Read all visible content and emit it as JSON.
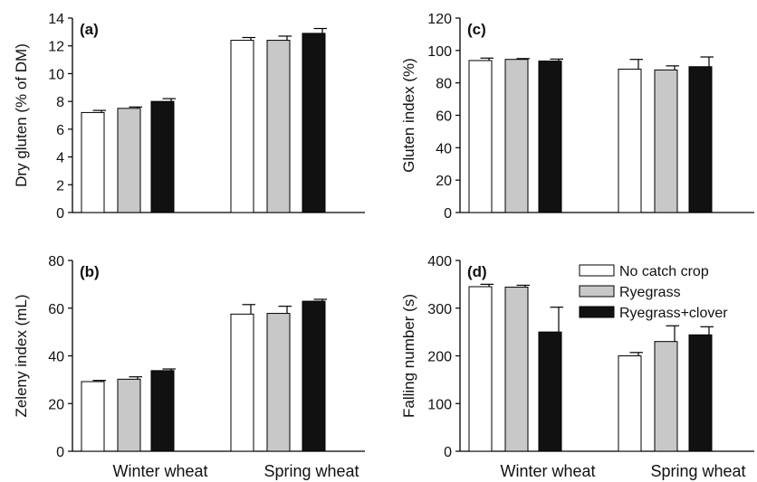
{
  "chart_data": [
    {
      "type": "bar",
      "panel_label": "(a)",
      "ylabel": "Dry gluten (% of DM)",
      "ylim": [
        0,
        14
      ],
      "yticks": [
        "0",
        "2",
        "4",
        "6",
        "8",
        "10",
        "12",
        "14"
      ],
      "categories": [
        "Winter wheat",
        "Spring wheat"
      ],
      "show_category_labels": false,
      "series": [
        {
          "name": "No catch crop",
          "values": [
            7.2,
            12.4
          ],
          "errors": [
            0.15,
            0.2
          ]
        },
        {
          "name": "Ryegrass",
          "values": [
            7.5,
            12.4
          ],
          "errors": [
            0.1,
            0.3
          ]
        },
        {
          "name": "Ryegrass+clover",
          "values": [
            8.0,
            12.9
          ],
          "errors": [
            0.2,
            0.35
          ]
        }
      ]
    },
    {
      "type": "bar",
      "panel_label": "(b)",
      "ylabel": "Zeleny index (mL)",
      "ylim": [
        0,
        80
      ],
      "yticks": [
        "0",
        "20",
        "40",
        "60",
        "80"
      ],
      "categories": [
        "Winter wheat",
        "Spring wheat"
      ],
      "show_category_labels": true,
      "series": [
        {
          "name": "No catch crop",
          "values": [
            29.2,
            57.5
          ],
          "errors": [
            0.5,
            4.0
          ]
        },
        {
          "name": "Ryegrass",
          "values": [
            30.2,
            57.8
          ],
          "errors": [
            1.0,
            3.0
          ]
        },
        {
          "name": "Ryegrass+clover",
          "values": [
            33.8,
            62.9
          ],
          "errors": [
            0.7,
            0.8
          ]
        }
      ]
    },
    {
      "type": "bar",
      "panel_label": "(c)",
      "ylabel": "Gluten index (%)",
      "ylim": [
        0,
        120
      ],
      "yticks": [
        "0",
        "20",
        "40",
        "60",
        "80",
        "100",
        "120"
      ],
      "categories": [
        "Winter wheat",
        "Spring wheat"
      ],
      "show_category_labels": false,
      "series": [
        {
          "name": "No catch crop",
          "values": [
            93.8,
            88.5
          ],
          "errors": [
            1.5,
            6.0
          ]
        },
        {
          "name": "Ryegrass",
          "values": [
            94.5,
            88.0
          ],
          "errors": [
            0.5,
            2.5
          ]
        },
        {
          "name": "Ryegrass+clover",
          "values": [
            93.5,
            90.0
          ],
          "errors": [
            1.2,
            6.0
          ]
        }
      ]
    },
    {
      "type": "bar",
      "panel_label": "(d)",
      "ylabel": "Falling number (s)",
      "ylim": [
        0,
        400
      ],
      "yticks": [
        "0",
        "100",
        "200",
        "300",
        "400"
      ],
      "categories": [
        "Winter wheat",
        "Spring wheat"
      ],
      "show_category_labels": true,
      "legend": "top-right",
      "series": [
        {
          "name": "No catch crop",
          "values": [
            345,
            200
          ],
          "errors": [
            5,
            7
          ]
        },
        {
          "name": "Ryegrass",
          "values": [
            344,
            230
          ],
          "errors": [
            4,
            33
          ]
        },
        {
          "name": "Ryegrass+clover",
          "values": [
            250,
            244
          ],
          "errors": [
            52,
            17
          ]
        }
      ]
    }
  ],
  "colors": {
    "No catch crop": "#ffffff",
    "Ryegrass": "#c8c8c8",
    "Ryegrass+clover": "#111111",
    "axis": "#000000"
  }
}
